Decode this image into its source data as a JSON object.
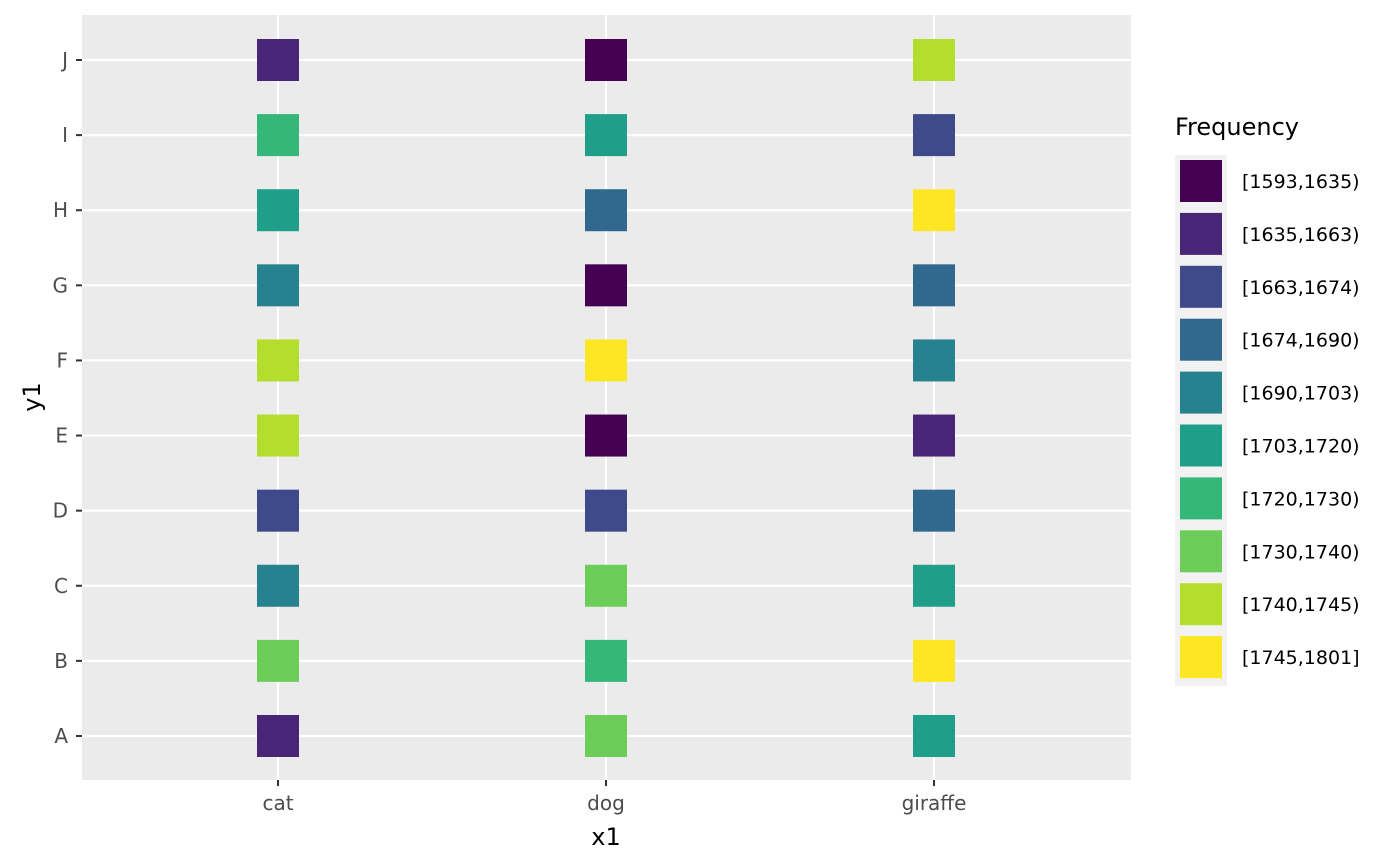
{
  "chart_data": {
    "type": "heatmap",
    "title": "",
    "xlabel": "x1",
    "ylabel": "y1",
    "x_categories": [
      "cat",
      "dog",
      "giraffe"
    ],
    "y_categories": [
      "A",
      "B",
      "C",
      "D",
      "E",
      "F",
      "G",
      "H",
      "I",
      "J"
    ],
    "legend": {
      "title": "Frequency",
      "placement": "right",
      "bins": [
        {
          "label": "[1593,1635)",
          "color": "#440154"
        },
        {
          "label": "[1635,1663)",
          "color": "#482576"
        },
        {
          "label": "[1663,1674)",
          "color": "#3E4A89"
        },
        {
          "label": "[1674,1690)",
          "color": "#31688E"
        },
        {
          "label": "[1690,1703)",
          "color": "#26828E"
        },
        {
          "label": "[1703,1720)",
          "color": "#1F9E89"
        },
        {
          "label": "[1720,1730)",
          "color": "#35B779"
        },
        {
          "label": "[1730,1740)",
          "color": "#6DCD59"
        },
        {
          "label": "[1740,1745)",
          "color": "#B4DE2C"
        },
        {
          "label": "[1745,1801]",
          "color": "#FDE725"
        }
      ]
    },
    "cells": [
      {
        "x": "cat",
        "y": "A",
        "bin": 1
      },
      {
        "x": "cat",
        "y": "B",
        "bin": 7
      },
      {
        "x": "cat",
        "y": "C",
        "bin": 4
      },
      {
        "x": "cat",
        "y": "D",
        "bin": 2
      },
      {
        "x": "cat",
        "y": "E",
        "bin": 8
      },
      {
        "x": "cat",
        "y": "F",
        "bin": 8
      },
      {
        "x": "cat",
        "y": "G",
        "bin": 4
      },
      {
        "x": "cat",
        "y": "H",
        "bin": 5
      },
      {
        "x": "cat",
        "y": "I",
        "bin": 6
      },
      {
        "x": "cat",
        "y": "J",
        "bin": 1
      },
      {
        "x": "dog",
        "y": "A",
        "bin": 7
      },
      {
        "x": "dog",
        "y": "B",
        "bin": 6
      },
      {
        "x": "dog",
        "y": "C",
        "bin": 7
      },
      {
        "x": "dog",
        "y": "D",
        "bin": 2
      },
      {
        "x": "dog",
        "y": "E",
        "bin": 0
      },
      {
        "x": "dog",
        "y": "F",
        "bin": 9
      },
      {
        "x": "dog",
        "y": "G",
        "bin": 0
      },
      {
        "x": "dog",
        "y": "H",
        "bin": 3
      },
      {
        "x": "dog",
        "y": "I",
        "bin": 5
      },
      {
        "x": "dog",
        "y": "J",
        "bin": 0
      },
      {
        "x": "giraffe",
        "y": "A",
        "bin": 5
      },
      {
        "x": "giraffe",
        "y": "B",
        "bin": 9
      },
      {
        "x": "giraffe",
        "y": "C",
        "bin": 5
      },
      {
        "x": "giraffe",
        "y": "D",
        "bin": 3
      },
      {
        "x": "giraffe",
        "y": "E",
        "bin": 1
      },
      {
        "x": "giraffe",
        "y": "F",
        "bin": 4
      },
      {
        "x": "giraffe",
        "y": "G",
        "bin": 3
      },
      {
        "x": "giraffe",
        "y": "H",
        "bin": 9
      },
      {
        "x": "giraffe",
        "y": "I",
        "bin": 2
      },
      {
        "x": "giraffe",
        "y": "J",
        "bin": 8
      }
    ],
    "grid": true,
    "panel_color": "#EBEBEB",
    "grid_color": "#FFFFFF"
  }
}
